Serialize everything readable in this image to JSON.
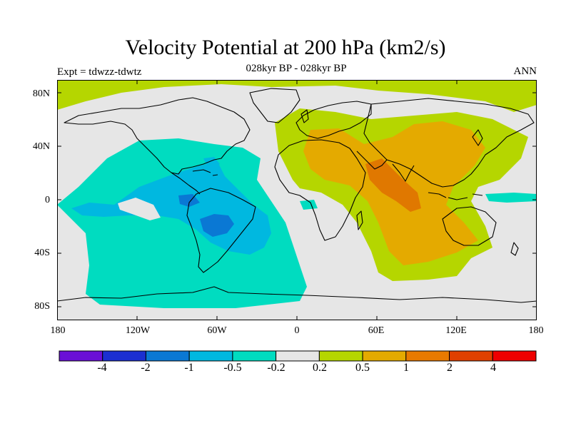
{
  "title": "Velocity Potential at 200 hPa (km2/s)",
  "subtitle": "028kyr BP - 028kyr BP",
  "left_label": "Expt = tdwzz-tdwtz",
  "right_label": "ANN",
  "lat_ticks": [
    "80N",
    "40N",
    "0",
    "40S",
    "80S"
  ],
  "lon_ticks": [
    "180",
    "120W",
    "60W",
    "0",
    "60E",
    "120E",
    "180"
  ],
  "colorbar": {
    "colors": [
      "#6a0fd6",
      "#1b2fd1",
      "#0a78d4",
      "#00b8e0",
      "#00dcc0",
      "#e6e6e6",
      "#b5d600",
      "#e4aa00",
      "#e87a00",
      "#e04000",
      "#ee0000"
    ],
    "labels": [
      "-4",
      "-2",
      "-1",
      "-0.5",
      "-0.2",
      "0.2",
      "0.5",
      "1",
      "2",
      "4"
    ]
  },
  "fill_colors": {
    "ocean_land_neutral": "#e6e6e6",
    "positive_weak": "#b5d600",
    "positive_mid": "#e4aa00",
    "positive_strong": "#e07800",
    "negative_weak": "#00dcc0",
    "negative_mid": "#00b8e0",
    "negative_strong": "#0a78d4"
  }
}
